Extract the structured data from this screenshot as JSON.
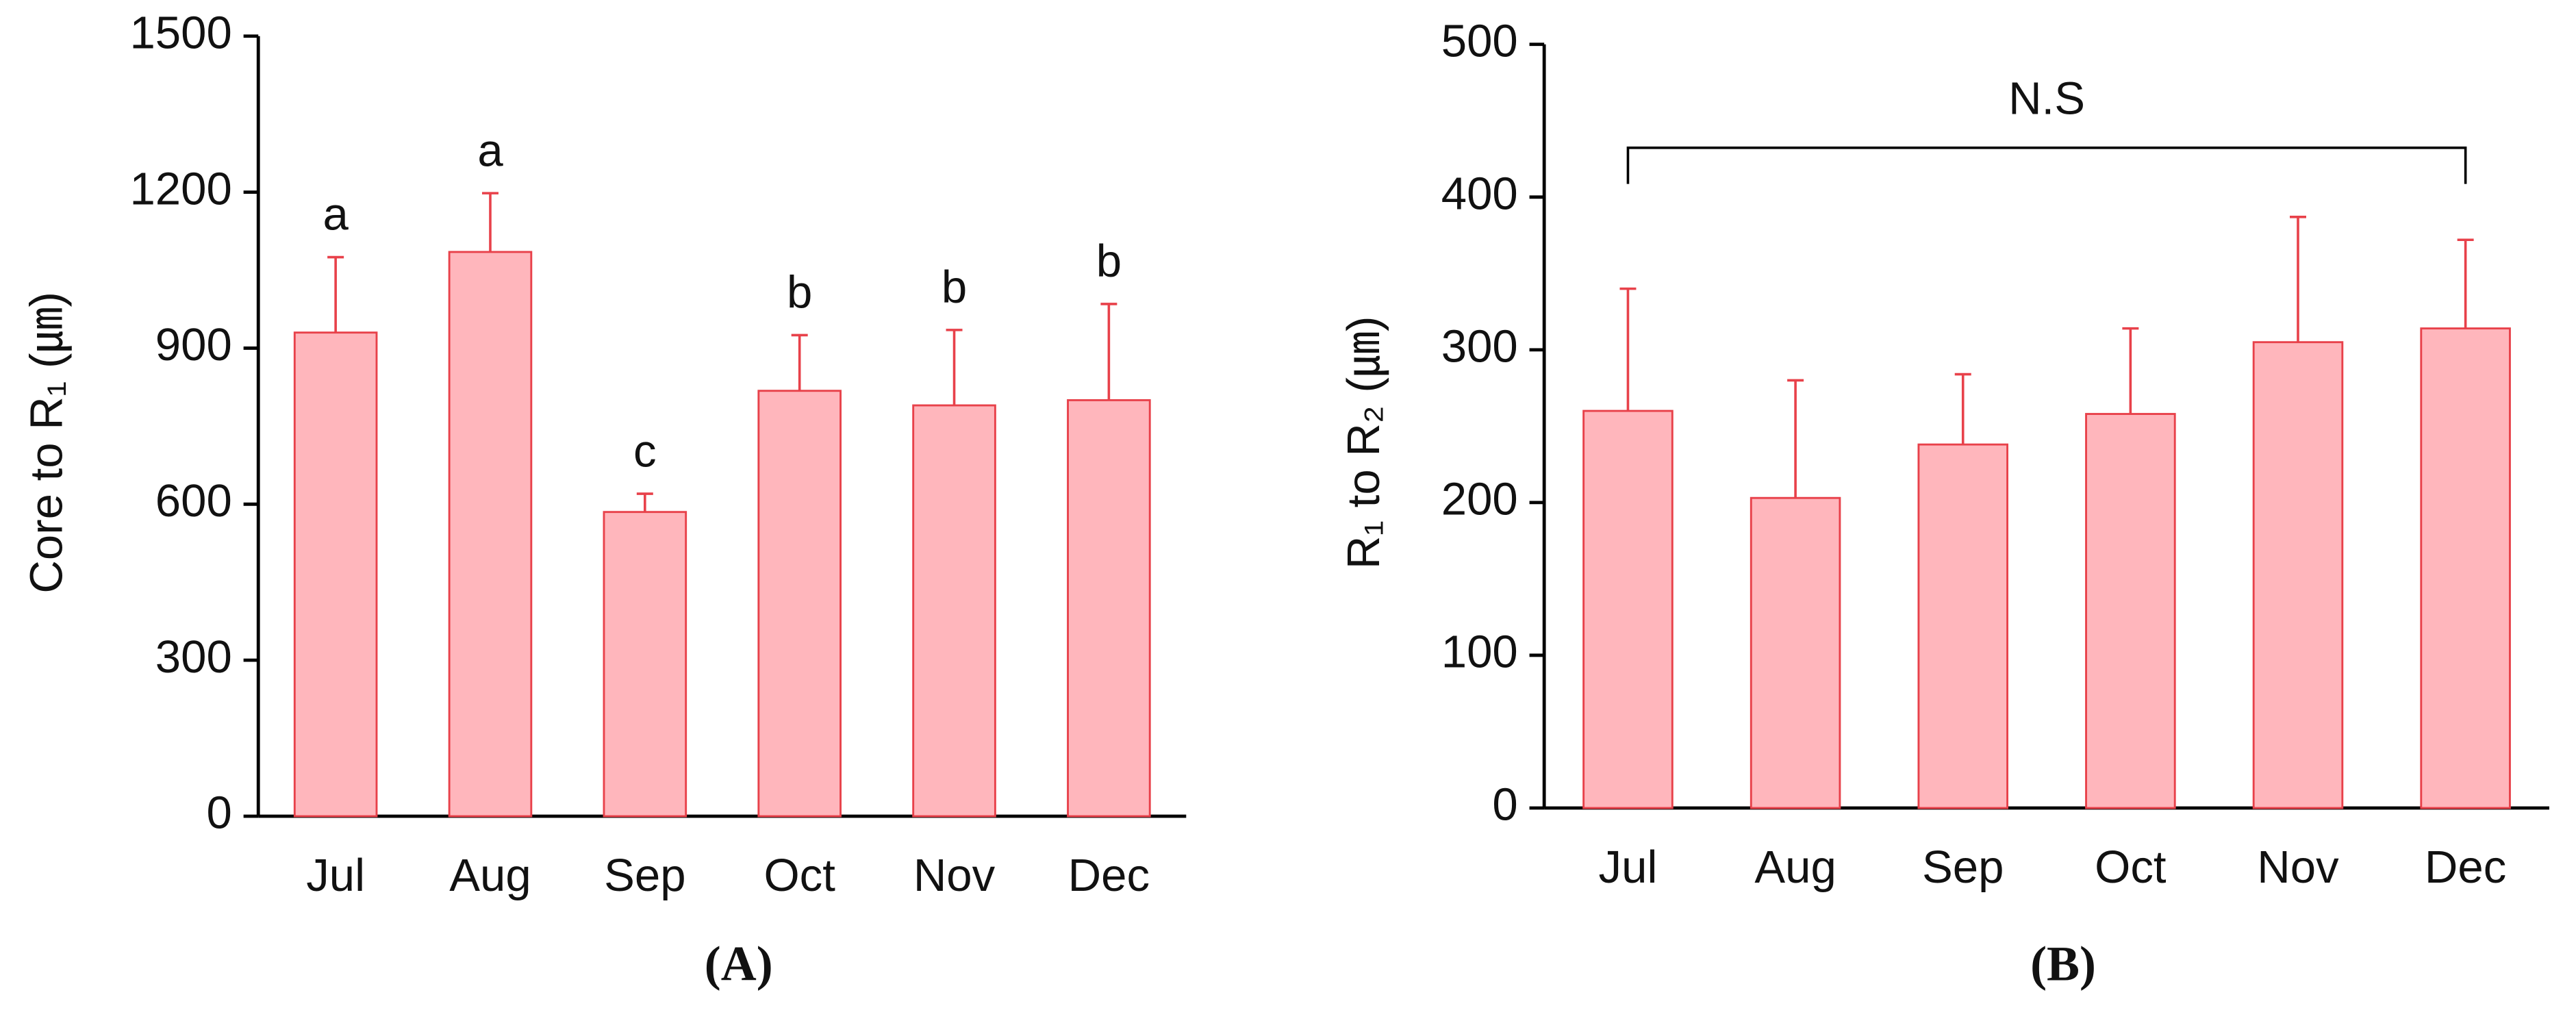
{
  "chart_data": [
    {
      "type": "bar",
      "panel": "(A)",
      "ylabel": "Core to R₁ (㎛)",
      "categories": [
        "Jul",
        "Aug",
        "Sep",
        "Oct",
        "Nov",
        "Dec"
      ],
      "values": [
        930,
        1085,
        585,
        818,
        790,
        800
      ],
      "errors": [
        145,
        113,
        35,
        107,
        145,
        185
      ],
      "letters": [
        "a",
        "a",
        "c",
        "b",
        "b",
        "b"
      ],
      "color": "#ffb6bc",
      "edge": "#e8414a",
      "ylim": [
        0,
        1500
      ],
      "yticks": [
        0,
        300,
        600,
        900,
        1200,
        1500
      ]
    },
    {
      "type": "bar",
      "panel": "(B)",
      "ylabel": "R₁ to R₂ (㎛)",
      "categories": [
        "Jul",
        "Aug",
        "Sep",
        "Oct",
        "Nov",
        "Dec"
      ],
      "values": [
        260,
        203,
        238,
        258,
        305,
        314
      ],
      "errors": [
        80,
        77,
        46,
        56,
        82,
        58
      ],
      "annotation": "N.S",
      "color": "#ffb6bc",
      "edge": "#e8414a",
      "ylim": [
        0,
        500
      ],
      "yticks": [
        0,
        100,
        200,
        300,
        400,
        500
      ]
    }
  ]
}
